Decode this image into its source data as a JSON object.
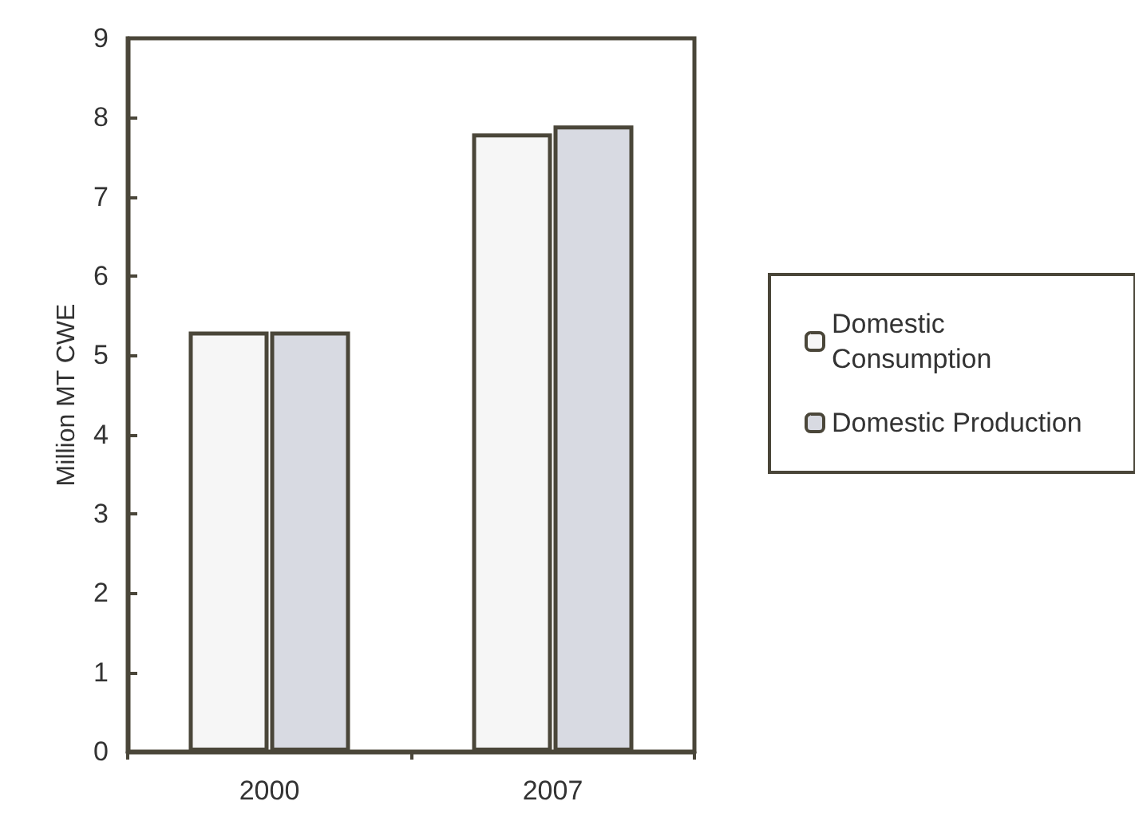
{
  "chart_data": {
    "type": "bar",
    "ylabel": "Million MT CWE",
    "categories": [
      "2000",
      "2007"
    ],
    "series": [
      {
        "name": "Domestic Consumption",
        "color": "#f6f6f6",
        "values": [
          5.3,
          7.8
        ]
      },
      {
        "name": "Domestic Production",
        "color": "#d8dae2",
        "values": [
          5.3,
          7.9
        ]
      }
    ],
    "ylim": [
      0,
      9
    ],
    "yticks": [
      0,
      1,
      2,
      3,
      4,
      5,
      6,
      7,
      8,
      9
    ],
    "grid": false,
    "legend": "right"
  }
}
